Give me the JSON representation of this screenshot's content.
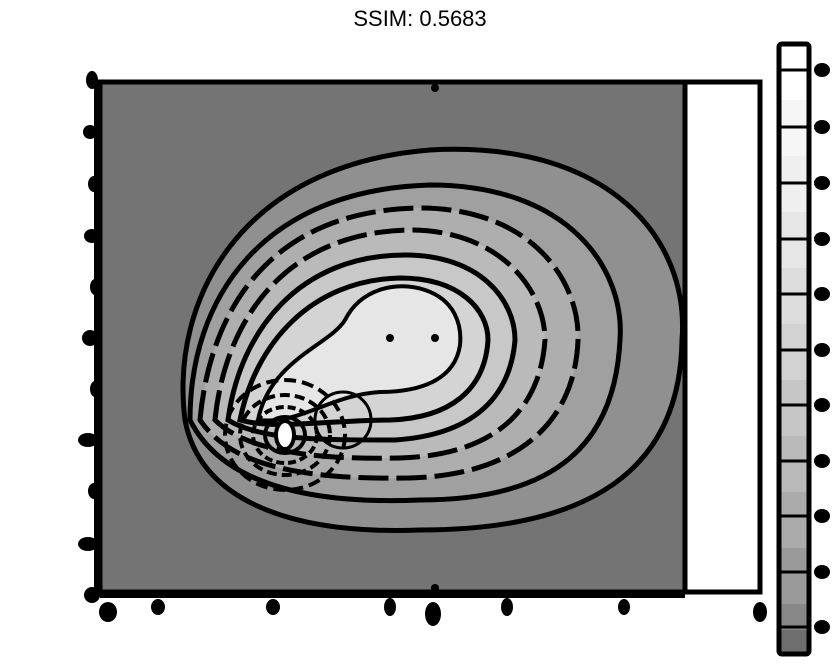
{
  "title": "SSIM: 0.5683"
}
